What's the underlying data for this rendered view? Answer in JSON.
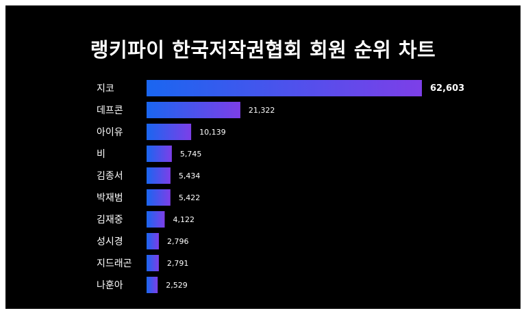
{
  "chart_data": {
    "type": "bar",
    "orientation": "horizontal",
    "title": "랭키파이 한국저작권협회 회원 순위 차트",
    "categories": [
      "지코",
      "데프콘",
      "아이유",
      "비",
      "김종서",
      "박재범",
      "김재중",
      "성시경",
      "지드래곤",
      "나훈아"
    ],
    "values": [
      62603,
      21322,
      10139,
      5745,
      5434,
      5422,
      4122,
      2796,
      2791,
      2529
    ],
    "value_labels": [
      "62,603",
      "21,322",
      "10,139",
      "5,745",
      "5,434",
      "5,422",
      "4,122",
      "2,796",
      "2,791",
      "2,529"
    ],
    "xlim": [
      0,
      62603
    ],
    "grid": false,
    "legend": "none",
    "colors": {
      "bar_start": "#1a66f0",
      "bar_end": "#7d3fe8",
      "background": "#000000",
      "text": "#ffffff"
    }
  }
}
